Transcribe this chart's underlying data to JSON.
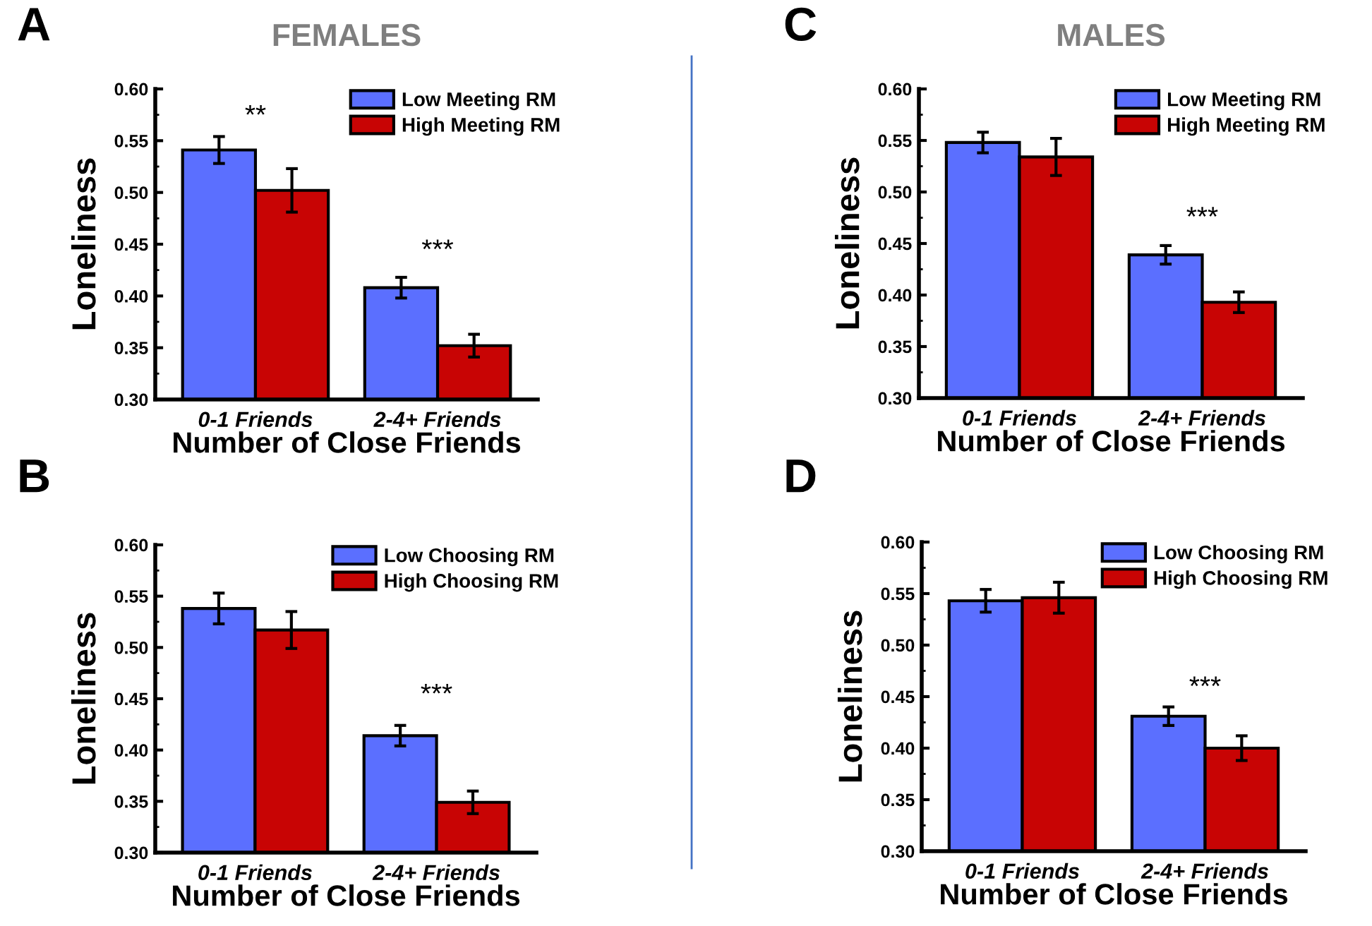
{
  "chart_data": [
    {
      "type": "bar",
      "title": "FEMALES",
      "ylabel": "Loneliness",
      "xlabel": "Number of Close Friends",
      "categories": [
        "0-1 Friends",
        "2-4+ Friends"
      ],
      "series": [
        {
          "name": "Low Meeting RM",
          "color": "#5b6fff",
          "values": [
            0.541,
            0.408
          ],
          "errors": [
            0.013,
            0.01
          ]
        },
        {
          "name": "High Meeting RM",
          "color": "#c80404",
          "values": [
            0.502,
            0.352
          ],
          "errors": [
            0.021,
            0.011
          ]
        }
      ],
      "ylim": [
        0.3,
        0.6
      ],
      "yticks": [
        {
          "value": 0.3,
          "label": "0.30"
        },
        {
          "value": 0.35,
          "label": "0.35"
        },
        {
          "value": 0.4,
          "label": "0.40"
        },
        {
          "value": 0.45,
          "label": "0.45"
        },
        {
          "value": 0.5,
          "label": "0.50"
        },
        {
          "value": 0.55,
          "label": "0.55"
        },
        {
          "value": 0.6,
          "label": "0.60"
        }
      ],
      "legend": "top right",
      "annotations": [
        "A",
        "**",
        "***"
      ]
    },
    {
      "type": "bar",
      "title": "MALES",
      "ylabel": "Loneliness",
      "xlabel": "Number of Close Friends",
      "categories": [
        "0-1 Friends",
        "2-4+ Friends"
      ],
      "series": [
        {
          "name": "Low Meeting RM",
          "color": "#5b6fff",
          "values": [
            0.548,
            0.439
          ],
          "errors": [
            0.01,
            0.009
          ]
        },
        {
          "name": "High Meeting RM",
          "color": "#c80404",
          "values": [
            0.534,
            0.393
          ],
          "errors": [
            0.018,
            0.01
          ]
        }
      ],
      "ylim": [
        0.3,
        0.6
      ],
      "yticks": [
        {
          "value": 0.3,
          "label": "0.30"
        },
        {
          "value": 0.35,
          "label": "0.35"
        },
        {
          "value": 0.4,
          "label": "0.40"
        },
        {
          "value": 0.45,
          "label": "0.45"
        },
        {
          "value": 0.5,
          "label": "0.50"
        },
        {
          "value": 0.55,
          "label": "0.55"
        },
        {
          "value": 0.6,
          "label": "0.60"
        }
      ],
      "legend": "top right",
      "annotations": [
        "C",
        "***"
      ]
    },
    {
      "type": "bar",
      "ylabel": "Loneliness",
      "xlabel": "Number of Close Friends",
      "categories": [
        "0-1 Friends",
        "2-4+ Friends"
      ],
      "series": [
        {
          "name": "Low Choosing RM",
          "color": "#5b6fff",
          "values": [
            0.538,
            0.414
          ],
          "errors": [
            0.015,
            0.01
          ]
        },
        {
          "name": "High Choosing RM",
          "color": "#c80404",
          "values": [
            0.517,
            0.349
          ],
          "errors": [
            0.018,
            0.011
          ]
        }
      ],
      "ylim": [
        0.3,
        0.6
      ],
      "yticks": [
        {
          "value": 0.3,
          "label": "0.30"
        },
        {
          "value": 0.35,
          "label": "0.35"
        },
        {
          "value": 0.4,
          "label": "0.40"
        },
        {
          "value": 0.45,
          "label": "0.45"
        },
        {
          "value": 0.5,
          "label": "0.50"
        },
        {
          "value": 0.55,
          "label": "0.55"
        },
        {
          "value": 0.6,
          "label": "0.60"
        }
      ],
      "legend": "top right",
      "annotations": [
        "B",
        "***"
      ]
    },
    {
      "type": "bar",
      "ylabel": "Loneliness",
      "xlabel": "Number of Close Friends",
      "categories": [
        "0-1 Friends",
        "2-4+ Friends"
      ],
      "series": [
        {
          "name": "Low Choosing RM",
          "color": "#5b6fff",
          "values": [
            0.543,
            0.431
          ],
          "errors": [
            0.011,
            0.009
          ]
        },
        {
          "name": "High Choosing RM",
          "color": "#c80404",
          "values": [
            0.546,
            0.4
          ],
          "errors": [
            0.015,
            0.012
          ]
        }
      ],
      "ylim": [
        0.3,
        0.6
      ],
      "yticks": [
        {
          "value": 0.3,
          "label": "0.30"
        },
        {
          "value": 0.35,
          "label": "0.35"
        },
        {
          "value": 0.4,
          "label": "0.40"
        },
        {
          "value": 0.45,
          "label": "0.45"
        },
        {
          "value": 0.5,
          "label": "0.50"
        },
        {
          "value": 0.55,
          "label": "0.55"
        },
        {
          "value": 0.6,
          "label": "0.60"
        }
      ],
      "legend": "top right",
      "annotations": [
        "D",
        "***"
      ]
    }
  ]
}
